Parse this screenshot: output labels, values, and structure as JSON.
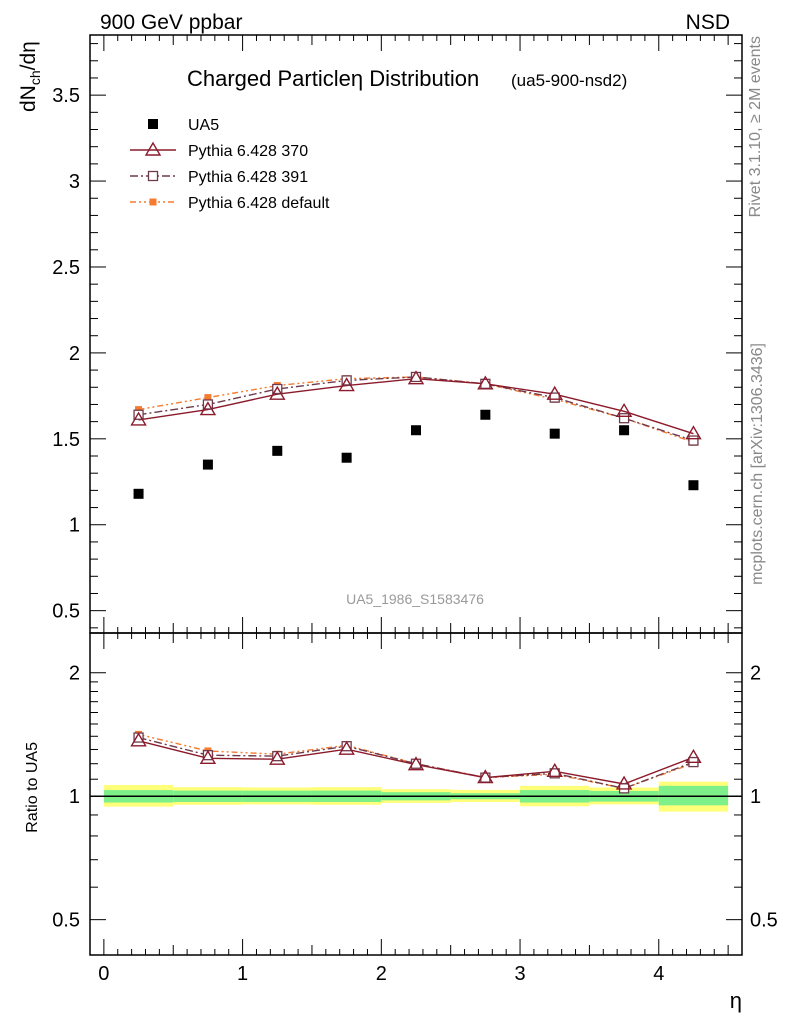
{
  "header": {
    "energy_label": "900 GeV ppbar",
    "process_label": "NSD"
  },
  "side_text": {
    "rivet": "Rivet 3.1.10, ≥ 2M events",
    "mcplots": "mcplots.cern.ch [arXiv:1306.3436]"
  },
  "watermark": "UA5_1986_S1583476",
  "chart_data": [
    {
      "type": "line",
      "title": "Charged Particleη Distribution",
      "subtitle": "(ua5-900-nsd2)",
      "ylabel_main": "dN",
      "ylabel_sub": "ch",
      "ylabel_tail": "/dη",
      "xlabel": "η",
      "xlim": [
        -0.1,
        4.6
      ],
      "ylim": [
        0.37,
        3.85
      ],
      "x_ticks": [
        "0",
        "1",
        "2",
        "3",
        "4"
      ],
      "y_ticks": [
        "0.5",
        "1",
        "1.5",
        "2",
        "2.5",
        "3",
        "3.5"
      ],
      "x": [
        0.25,
        0.75,
        1.25,
        1.75,
        2.25,
        2.75,
        3.25,
        3.75,
        4.25
      ],
      "series": [
        {
          "name": "UA5",
          "marker": "square-filled",
          "color": "#000000",
          "line": "none",
          "values": [
            1.18,
            1.35,
            1.43,
            1.39,
            1.55,
            1.64,
            1.53,
            1.55,
            1.23
          ]
        },
        {
          "name": "Pythia 6.428 370",
          "marker": "triangle-open",
          "color": "#8b1a2b",
          "line": "solid",
          "values": [
            1.61,
            1.67,
            1.76,
            1.81,
            1.85,
            1.82,
            1.76,
            1.66,
            1.53
          ]
        },
        {
          "name": "Pythia 6.428 391",
          "marker": "square-open",
          "color": "#6e3b4d",
          "line": "dashdot",
          "values": [
            1.64,
            1.7,
            1.79,
            1.84,
            1.86,
            1.82,
            1.74,
            1.62,
            1.49
          ]
        },
        {
          "name": "Pythia 6.428 default",
          "marker": "square-filled",
          "color": "#f47b30",
          "line": "dashdotdot",
          "values": [
            1.67,
            1.74,
            1.81,
            1.85,
            1.86,
            1.82,
            1.73,
            1.62,
            1.48
          ]
        }
      ],
      "legend_position": "top-left",
      "grid": false
    },
    {
      "type": "line",
      "ylabel": "Ratio to UA5",
      "ylog": true,
      "xlim": [
        -0.1,
        4.6
      ],
      "ylim": [
        0.41,
        2.5
      ],
      "y_ticks": [
        "0.5",
        "1",
        "2"
      ],
      "x": [
        0.25,
        0.75,
        1.25,
        1.75,
        2.25,
        2.75,
        3.25,
        3.75,
        4.25
      ],
      "band_edges": [
        0,
        0.5,
        1,
        1.5,
        2,
        2.5,
        3,
        3.5,
        4,
        4.5
      ],
      "band_inner": [
        [
          0.965,
          1.035
        ],
        [
          0.968,
          1.032
        ],
        [
          0.968,
          1.032
        ],
        [
          0.968,
          1.032
        ],
        [
          0.977,
          1.023
        ],
        [
          0.983,
          1.017
        ],
        [
          0.965,
          1.035
        ],
        [
          0.97,
          1.03
        ],
        [
          0.95,
          1.06
        ]
      ],
      "band_outer": [
        [
          0.943,
          1.065
        ],
        [
          0.953,
          1.052
        ],
        [
          0.955,
          1.05
        ],
        [
          0.953,
          1.052
        ],
        [
          0.963,
          1.04
        ],
        [
          0.968,
          1.036
        ],
        [
          0.945,
          1.06
        ],
        [
          0.955,
          1.05
        ],
        [
          0.917,
          1.085
        ]
      ],
      "series": [
        {
          "name": "Pythia 6.428 370",
          "values": [
            1.365,
            1.237,
            1.231,
            1.302,
            1.194,
            1.11,
            1.15,
            1.071,
            1.244
          ]
        },
        {
          "name": "Pythia 6.428 391",
          "values": [
            1.39,
            1.259,
            1.252,
            1.324,
            1.2,
            1.11,
            1.137,
            1.045,
            1.211
          ]
        },
        {
          "name": "Pythia 6.428 default",
          "values": [
            1.415,
            1.289,
            1.266,
            1.331,
            1.2,
            1.11,
            1.131,
            1.045,
            1.203
          ]
        }
      ],
      "colors": {
        "inner_band": "#7df08a",
        "outer_band": "#ffff7a",
        "ref_line": "#000000"
      }
    }
  ]
}
